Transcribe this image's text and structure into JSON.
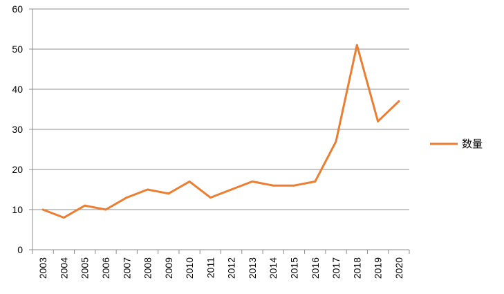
{
  "chart_data": {
    "type": "line",
    "x": [
      "2003",
      "2004",
      "2005",
      "2006",
      "2007",
      "2008",
      "2009",
      "2010",
      "2011",
      "2012",
      "2013",
      "2014",
      "2015",
      "2016",
      "2017",
      "2018",
      "2019",
      "2020"
    ],
    "series": [
      {
        "name": "数量",
        "color": "#ED7D31",
        "values": [
          10,
          8,
          11,
          10,
          13,
          15,
          14,
          17,
          13,
          15,
          17,
          16,
          16,
          17,
          27,
          51,
          32,
          37
        ]
      }
    ],
    "yticks": [
      "0",
      "10",
      "20",
      "30",
      "40",
      "50",
      "60"
    ],
    "ylim": [
      0,
      60
    ],
    "grid": true,
    "legend": "right"
  }
}
